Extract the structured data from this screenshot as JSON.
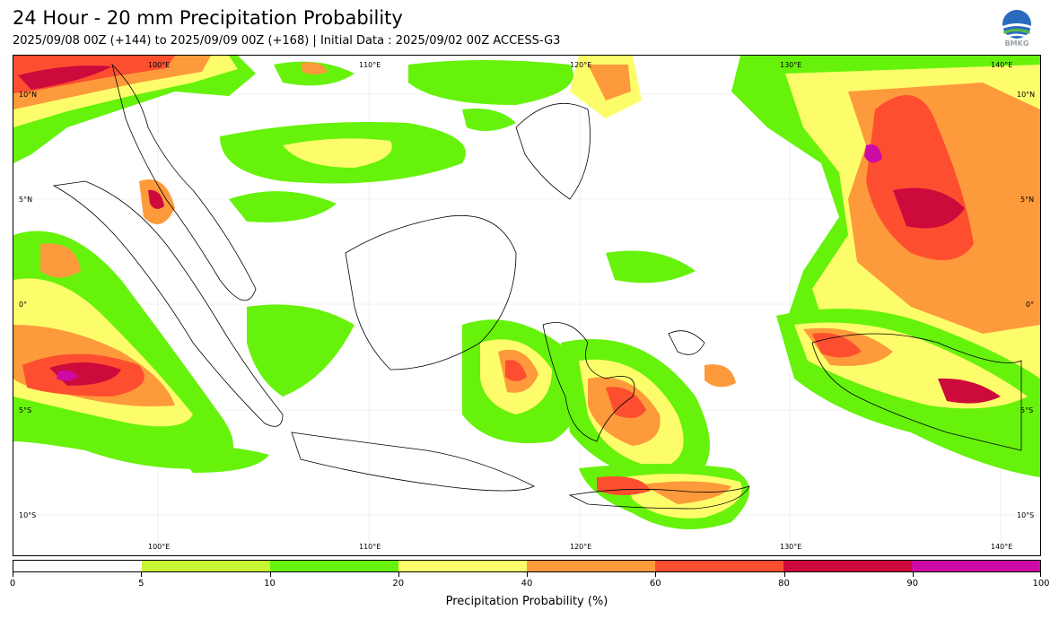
{
  "header": {
    "title": "24 Hour - 20 mm Precipitation Probability",
    "subtitle": "2025/09/08 00Z (+144) to 2025/09/09 00Z (+168) | Initial Data : 2025/09/02 00Z ACCESS-G3",
    "logo_text": "BMKG"
  },
  "map": {
    "lon_labels": [
      "100°E",
      "110°E",
      "120°E",
      "130°E",
      "140°E"
    ],
    "lat_labels": [
      "10°N",
      "5°N",
      "0°",
      "5°S",
      "10°S"
    ],
    "regions": [
      {
        "name": "northwest-pacific-high",
        "level": "60-80"
      },
      {
        "name": "north-pacific-band",
        "level": "40-60"
      },
      {
        "name": "south-china-sea-band",
        "level": "10-20"
      },
      {
        "name": "sumatra-west-indian-ocean",
        "level": "60-90"
      },
      {
        "name": "sulawesi",
        "level": "40-80"
      },
      {
        "name": "papua-maluku",
        "level": "40-80"
      },
      {
        "name": "nusa-tenggara",
        "level": "20-60"
      }
    ]
  },
  "colorbar": {
    "title": "Precipitation Probability (%)",
    "ticks": [
      "0",
      "5",
      "10",
      "20",
      "40",
      "60",
      "80",
      "90",
      "100"
    ],
    "colors": [
      "#ffffff",
      "#c8f534",
      "#66f20a",
      "#fdfd6b",
      "#fd9a3b",
      "#fd4f30",
      "#cc0a3c",
      "#cc0aa5"
    ]
  },
  "colors": {
    "c5": "#c8f534",
    "c10": "#66f20a",
    "c20": "#fdfd6b",
    "c40": "#fd9a3b",
    "c60": "#fd4f30",
    "c80": "#cc0a3c",
    "c90": "#cc0aa5"
  }
}
